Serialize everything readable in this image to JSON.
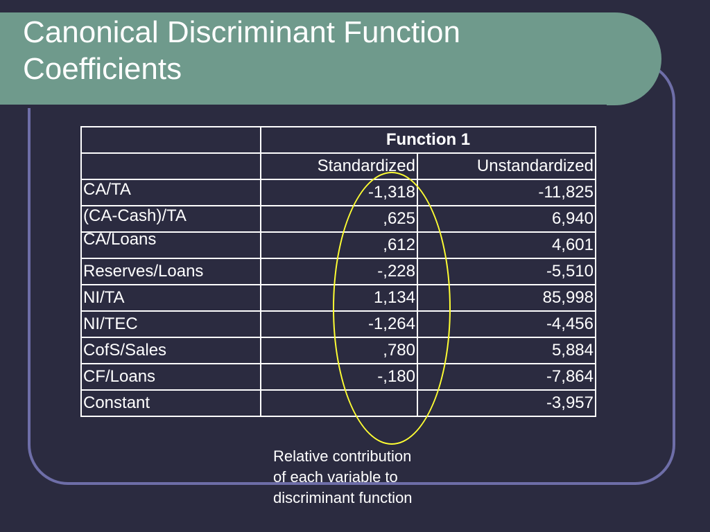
{
  "title": {
    "line1": "Canonical Discriminant Function",
    "line2": "Coefficients"
  },
  "table": {
    "header_function": "Function 1",
    "header_standardized": "Standardized",
    "header_unstandardized": "Unstandardized",
    "rows": [
      {
        "label": "CA/TA",
        "standardized": "-1,318",
        "unstandardized": "-11,825"
      },
      {
        "label": "(CA-Cash)/TA",
        "standardized": ",625",
        "unstandardized": "6,940"
      },
      {
        "label": "CA/Loans",
        "standardized": ",612",
        "unstandardized": "4,601"
      },
      {
        "label": "Reserves/Loans",
        "standardized": "-,228",
        "unstandardized": "-5,510"
      },
      {
        "label": "NI/TA",
        "standardized": "1,134",
        "unstandardized": "85,998"
      },
      {
        "label": "NI/TEC",
        "standardized": "-1,264",
        "unstandardized": "-4,456"
      },
      {
        "label": "CofS/Sales",
        "standardized": ",780",
        "unstandardized": "5,884"
      },
      {
        "label": "CF/Loans",
        "standardized": "-,180",
        "unstandardized": "-7,864"
      },
      {
        "label": "Constant",
        "standardized": "",
        "unstandardized": "-3,957"
      }
    ]
  },
  "annotation": {
    "line1": "Relative contribution",
    "line2": "of each variable to",
    "line3": "discriminant function"
  },
  "colors": {
    "background": "#2b2b40",
    "title_banner": "#6f9a8c",
    "frame": "#6e6ea8",
    "highlight_ellipse": "#ffff33"
  }
}
